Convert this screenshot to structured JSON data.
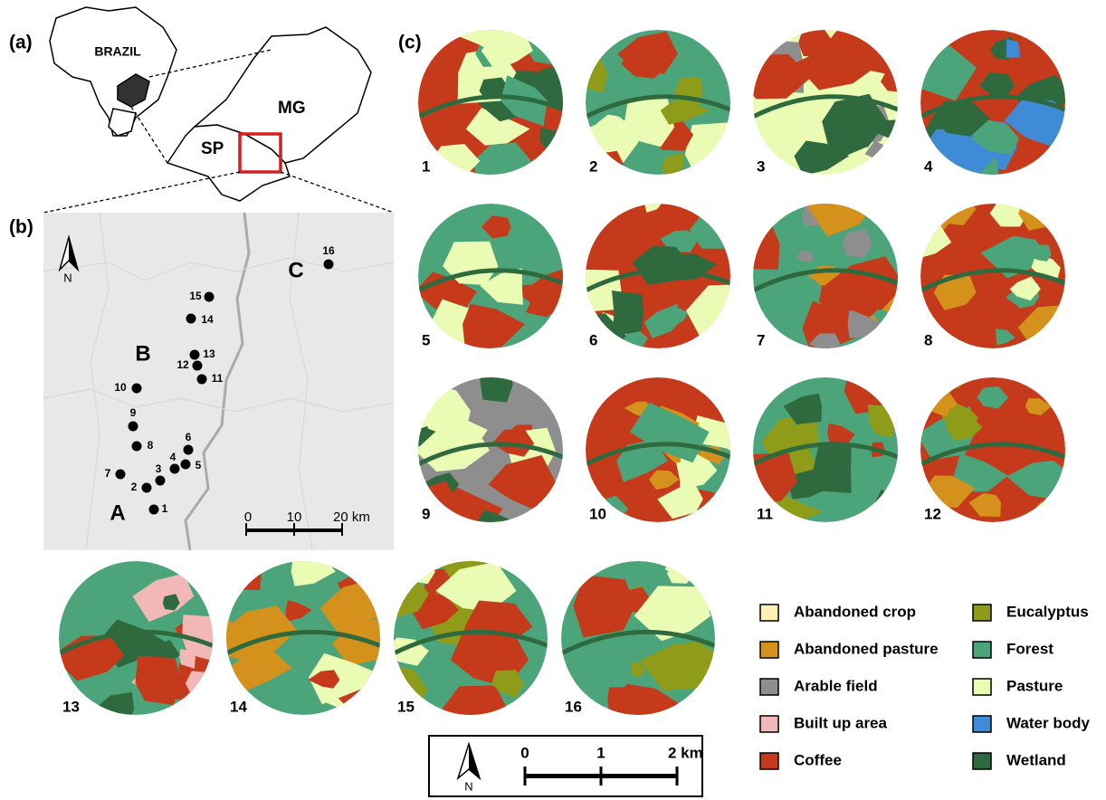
{
  "panels": {
    "a": "(a)",
    "b": "(b)",
    "c": "(c)"
  },
  "panel_a": {
    "country": "BRAZIL",
    "states": [
      "SP",
      "MG"
    ]
  },
  "panel_b": {
    "north": "N",
    "regions": [
      "A",
      "B",
      "C"
    ],
    "sites": [
      "1",
      "2",
      "3",
      "4",
      "5",
      "6",
      "7",
      "8",
      "9",
      "10",
      "11",
      "12",
      "13",
      "14",
      "15",
      "16"
    ],
    "scale": [
      "0",
      "10",
      "20 km"
    ]
  },
  "panel_c": {
    "landscapes": [
      "1",
      "2",
      "3",
      "4",
      "5",
      "6",
      "7",
      "8",
      "9",
      "10",
      "11",
      "12",
      "13",
      "14",
      "15",
      "16"
    ],
    "legend": [
      {
        "label": "Abandoned crop",
        "color": "#fdf2b4"
      },
      {
        "label": "Abandoned pasture",
        "color": "#d4911c"
      },
      {
        "label": "Arable field",
        "color": "#8e8e8e"
      },
      {
        "label": "Built up area",
        "color": "#f2b8b8"
      },
      {
        "label": "Coffee",
        "color": "#c53a1b"
      },
      {
        "label": "Eucalyptus",
        "color": "#8f9c1a"
      },
      {
        "label": "Forest",
        "color": "#4ca57a"
      },
      {
        "label": "Pasture",
        "color": "#eafbb4"
      },
      {
        "label": "Water body",
        "color": "#3f8bd6"
      },
      {
        "label": "Wetland",
        "color": "#2f6a3f"
      }
    ],
    "north": "N",
    "scale": [
      "0",
      "1",
      "2 km"
    ]
  }
}
